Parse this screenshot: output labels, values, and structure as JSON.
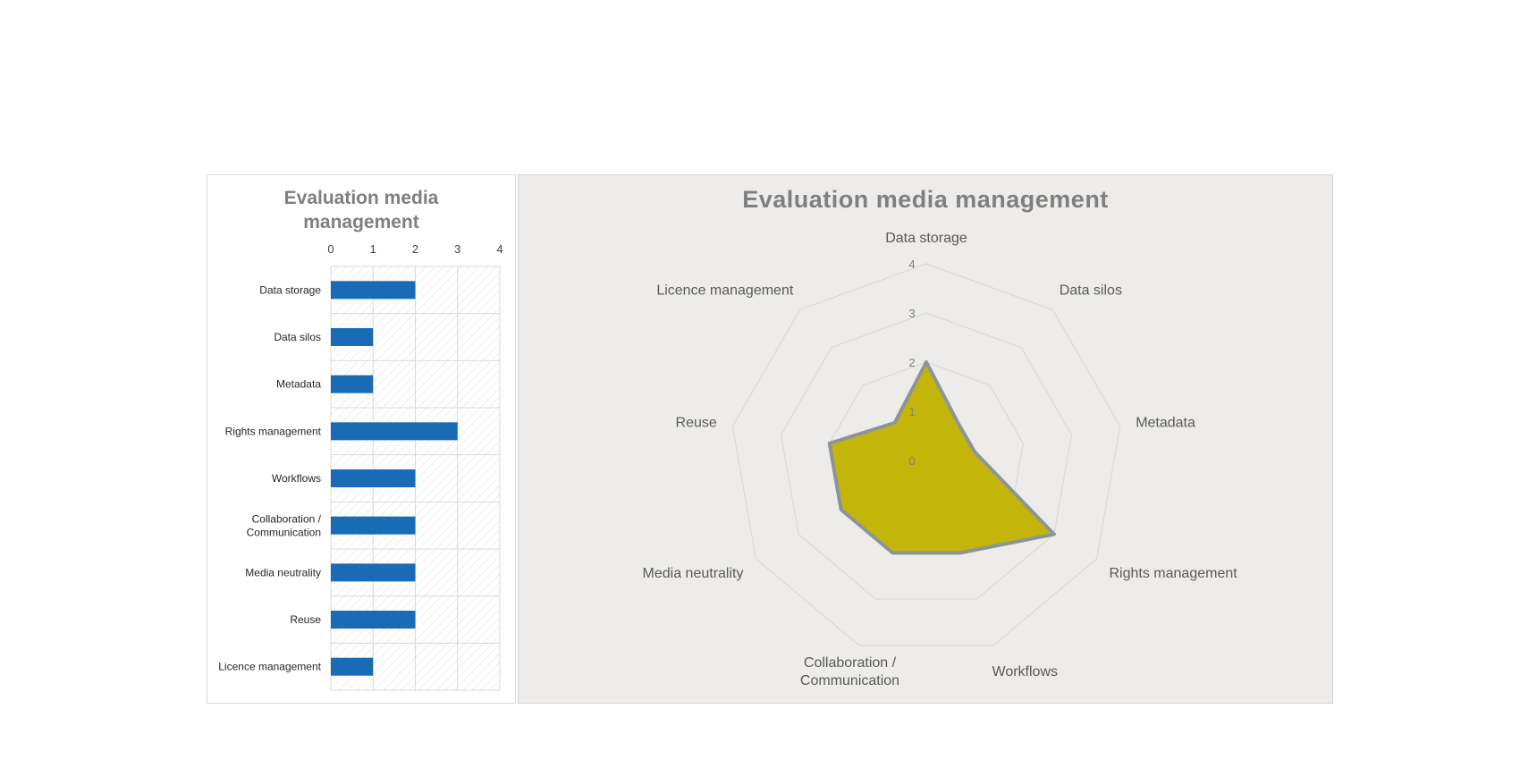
{
  "chart_data": [
    {
      "type": "bar",
      "orientation": "horizontal",
      "title": "Evaluation media management",
      "categories": [
        "Data storage",
        "Data silos",
        "Metadata",
        "Rights management",
        "Workflows",
        "Collaboration / Communication",
        "Media neutrality",
        "Reuse",
        "Licence management"
      ],
      "values": [
        2,
        1,
        1,
        3,
        2,
        2,
        2,
        2,
        1
      ],
      "xlim": [
        0,
        4
      ],
      "xticks": [
        "0",
        "1",
        "2",
        "3",
        "4"
      ],
      "grid": true,
      "bar_color": "#1a6bb5"
    },
    {
      "type": "radar",
      "title": "Evaluation media management",
      "categories": [
        "Data storage",
        "Data silos",
        "Metadata",
        "Rights management",
        "Workflows",
        "Collaboration / Communication",
        "Media neutrality",
        "Reuse",
        "Licence management"
      ],
      "values": [
        2,
        1,
        1,
        3,
        2,
        2,
        2,
        2,
        1
      ],
      "rlim": [
        0,
        4
      ],
      "rticks": [
        "0",
        "1",
        "2",
        "3",
        "4"
      ],
      "fill_color": "#c4b50a",
      "stroke_color": "#8c9498",
      "grid_color": "#d9d9d9"
    }
  ]
}
